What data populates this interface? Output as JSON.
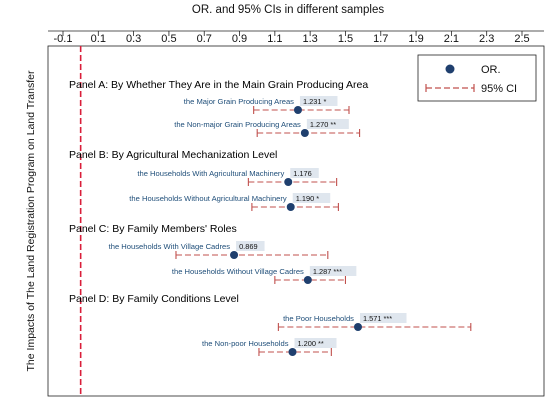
{
  "chart_data": {
    "type": "forest",
    "title": "OR. and 95% CIs in different samples",
    "ylabel": "The Impacts of The Land Registration Program on Land Transfer",
    "xlim": [
      -0.1,
      2.5
    ],
    "xticks": [
      "-0.1",
      "0.1",
      "0.3",
      "0.5",
      "0.7",
      "0.9",
      "1.1",
      "1.3",
      "1.5",
      "1.7",
      "1.9",
      "2.1",
      "2.3",
      "2.5"
    ],
    "reference_line": 0.0,
    "legend": {
      "placement": "top-right",
      "point_label": "OR.",
      "ci_label": "95% CI"
    },
    "colors": {
      "point": "#1f3f6e",
      "ci": "#c0504d",
      "ref": "#d91e3a",
      "row_text": "#1f4e79",
      "value_box": "#dfe6ee"
    },
    "panels": [
      {
        "label": "Panel A: By Whether They Are in the Main Grain Producing Area",
        "rows": [
          {
            "label": "the Major Grain Producing Areas",
            "or": 1.231,
            "lo": 0.98,
            "hi": 1.52,
            "value_text": "1.231 *"
          },
          {
            "label": "the Non-major Grain Producing Areas",
            "or": 1.27,
            "lo": 1.0,
            "hi": 1.58,
            "value_text": "1.270 **"
          }
        ]
      },
      {
        "label": "Panel B: By Agricultural Mechanization Level",
        "rows": [
          {
            "label": "the Households With Agricultural Machinery",
            "or": 1.176,
            "lo": 0.95,
            "hi": 1.45,
            "value_text": "1.176"
          },
          {
            "label": "the Households Without Agricultural Machinery",
            "or": 1.19,
            "lo": 0.97,
            "hi": 1.46,
            "value_text": "1.190 *"
          }
        ]
      },
      {
        "label": "Panel C: By Family Members' Roles",
        "rows": [
          {
            "label": "the Households With Village Cadres",
            "or": 0.869,
            "lo": 0.54,
            "hi": 1.4,
            "value_text": "0.869"
          },
          {
            "label": "the Households Without Village Cadres",
            "or": 1.287,
            "lo": 1.1,
            "hi": 1.5,
            "value_text": "1.287 ***"
          }
        ]
      },
      {
        "label": "Panel D: By Family Conditions Level",
        "rows": [
          {
            "label": "the Poor Households",
            "or": 1.571,
            "lo": 1.12,
            "hi": 2.21,
            "value_text": "1.571 ***"
          },
          {
            "label": "the Non-poor Households",
            "or": 1.2,
            "lo": 1.01,
            "hi": 1.42,
            "value_text": "1.200 **"
          }
        ]
      }
    ]
  }
}
